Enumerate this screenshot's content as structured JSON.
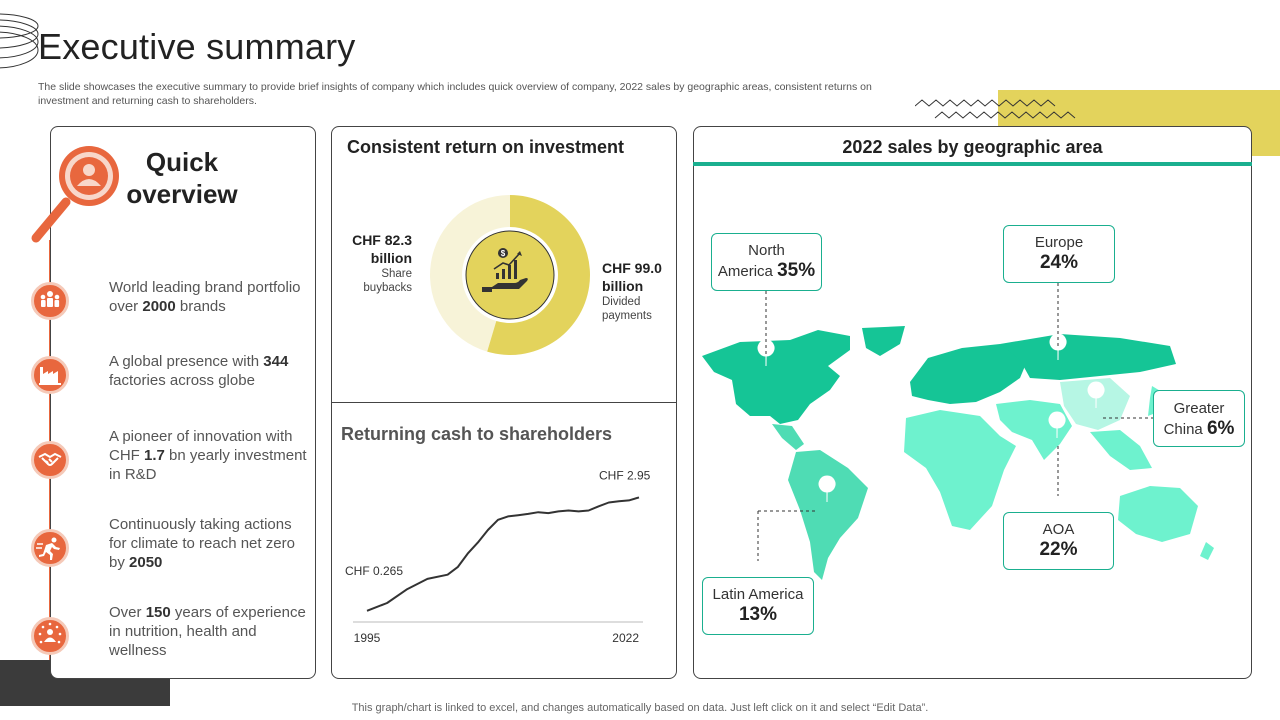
{
  "header": {
    "title": "Executive summary",
    "subtitle": "The slide showcases the executive summary to provide brief insights of company which includes quick overview of company, 2022 sales by geographic areas, consistent returns on investment and returning cash to shareholders."
  },
  "colors": {
    "accent_orange": "#e8673e",
    "accent_yellow": "#e3d35c",
    "map_teal_dark": "#15c596",
    "map_teal_light": "#6ef2ce",
    "line_teal": "#1aaf8f"
  },
  "quick_overview": {
    "title_line1": "Quick",
    "title_line2": "overview",
    "icon": "magnifier-user-icon",
    "items": [
      {
        "icon": "brand-people-icon",
        "pre": "World leading brand portfolio over ",
        "bold": "2000",
        "post": " brands"
      },
      {
        "icon": "factory-icon",
        "pre": "A global presence with ",
        "bold": "344",
        "post": " factories across globe"
      },
      {
        "icon": "handshake-icon",
        "pre": "A pioneer of innovation with CHF ",
        "bold": "1.7",
        "post": " bn yearly investment  in R&D"
      },
      {
        "icon": "runner-icon",
        "pre": "Continuously  taking actions for climate to reach net zero by ",
        "bold": "2050",
        "post": ""
      },
      {
        "icon": "people-circle-icon",
        "pre": "Over ",
        "bold": "150",
        "post": " years of experience in nutrition, health and wellness"
      }
    ]
  },
  "roi": {
    "title": "Consistent return on investment",
    "icon": "hand-growth-chart-icon",
    "left_value_line1": "CHF 82.3",
    "left_value_line2": "billion",
    "left_sub_line1": "Share",
    "left_sub_line2": "buybacks",
    "right_value_line1": "CHF 99.0",
    "right_value_line2": "billion",
    "right_sub_line1": "Divided",
    "right_sub_line2": "payments"
  },
  "cash": {
    "title": "Returning cash to shareholders"
  },
  "chart_data": [
    {
      "type": "pie",
      "categories": [
        "Share buybacks",
        "Divided payments"
      ],
      "values": [
        82.3,
        99.0
      ],
      "colors": [
        "#f7f3d8",
        "#e3d35c"
      ]
    },
    {
      "type": "line",
      "x": [
        1995,
        1997,
        1999,
        2001,
        2003,
        2004,
        2005,
        2006,
        2007,
        2008,
        2009,
        2010,
        2011,
        2012,
        2013,
        2014,
        2015,
        2016,
        2017,
        2018,
        2019,
        2020,
        2021,
        2022
      ],
      "series": [
        {
          "values": [
            0.265,
            0.45,
            0.78,
            1.02,
            1.12,
            1.3,
            1.62,
            1.88,
            2.18,
            2.42,
            2.5,
            2.53,
            2.56,
            2.6,
            2.58,
            2.62,
            2.64,
            2.62,
            2.64,
            2.74,
            2.83,
            2.86,
            2.88,
            2.95
          ]
        }
      ],
      "annotations": [
        {
          "text": "CHF  0.265",
          "x": 1995,
          "y": 0.265
        },
        {
          "text": "CHF  2.95",
          "x": 2022,
          "y": 2.95
        }
      ],
      "xtick_labels": [
        "1995",
        "2022"
      ],
      "xlim": [
        1995,
        2022
      ],
      "ylim": [
        0,
        3.6
      ]
    }
  ],
  "geo": {
    "title": "2022 sales by geographic area",
    "regions": [
      {
        "id": "north-america",
        "name": "North America",
        "name_line1": "North",
        "name_line2": "America",
        "pct": "35%"
      },
      {
        "id": "europe",
        "name": "Europe",
        "pct": "24%"
      },
      {
        "id": "greater-china",
        "name_line1": "Greater",
        "name_line2": "China",
        "pct": "6%"
      },
      {
        "id": "aoa",
        "name": "AOA",
        "pct": "22%"
      },
      {
        "id": "latin-america",
        "name": "Latin America",
        "pct": "13%"
      }
    ]
  },
  "footer": {
    "note": "This graph/chart is linked to excel,  and changes automatically based on data. Just left click on it and select “Edit Data”."
  }
}
